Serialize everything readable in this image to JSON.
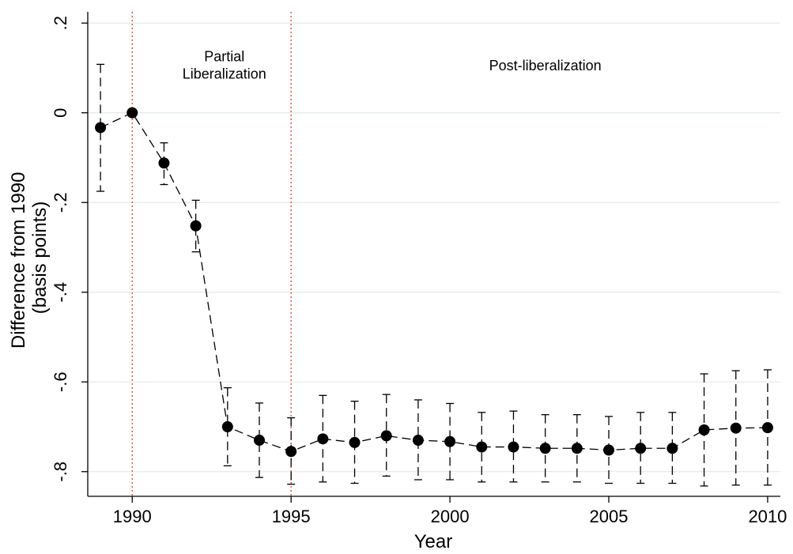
{
  "chart_data": {
    "type": "scatter",
    "xlabel": "Year",
    "ylabel_lines": [
      "Difference from 1990",
      "(basis points)"
    ],
    "xlim": [
      1988.6,
      2010.4
    ],
    "ylim": [
      -0.855,
      0.225
    ],
    "x_ticks": [
      1990,
      1995,
      2000,
      2005,
      2010
    ],
    "x_tick_labels": [
      "1990",
      "1995",
      "2000",
      "2005",
      "2010"
    ],
    "y_ticks": [
      0.2,
      0,
      -0.2,
      -0.4,
      -0.6,
      -0.8
    ],
    "y_tick_labels": [
      ".2",
      "0",
      "-.2",
      "-.4",
      "-.6",
      "-.8"
    ],
    "grid": true,
    "vlines": [
      1990,
      1995
    ],
    "annotations": [
      {
        "lines": [
          "Partial",
          "Liberalization"
        ],
        "x": 1992.9,
        "y": 0.115
      },
      {
        "lines": [
          "Post-liberalization"
        ],
        "x": 2003.0,
        "y": 0.095
      }
    ],
    "series": [
      {
        "x": [
          1989,
          1990,
          1991,
          1992,
          1993,
          1994,
          1995,
          1996,
          1997,
          1998,
          1999,
          2000,
          2001,
          2002,
          2003,
          2004,
          2005,
          2006,
          2007,
          2008,
          2009,
          2010
        ],
        "y": [
          -0.033,
          0.0,
          -0.112,
          -0.252,
          -0.7,
          -0.73,
          -0.755,
          -0.727,
          -0.735,
          -0.72,
          -0.73,
          -0.733,
          -0.745,
          -0.745,
          -0.748,
          -0.748,
          -0.752,
          -0.748,
          -0.748,
          -0.707,
          -0.703,
          -0.702
        ],
        "ci_low": [
          -0.175,
          0.0,
          -0.16,
          -0.31,
          -0.787,
          -0.813,
          -0.828,
          -0.823,
          -0.826,
          -0.81,
          -0.818,
          -0.818,
          -0.823,
          -0.823,
          -0.823,
          -0.823,
          -0.826,
          -0.826,
          -0.826,
          -0.832,
          -0.83,
          -0.83
        ],
        "ci_high": [
          0.108,
          0.0,
          -0.067,
          -0.195,
          -0.613,
          -0.647,
          -0.68,
          -0.63,
          -0.643,
          -0.628,
          -0.64,
          -0.648,
          -0.668,
          -0.665,
          -0.673,
          -0.673,
          -0.677,
          -0.668,
          -0.668,
          -0.582,
          -0.575,
          -0.573
        ]
      }
    ]
  }
}
